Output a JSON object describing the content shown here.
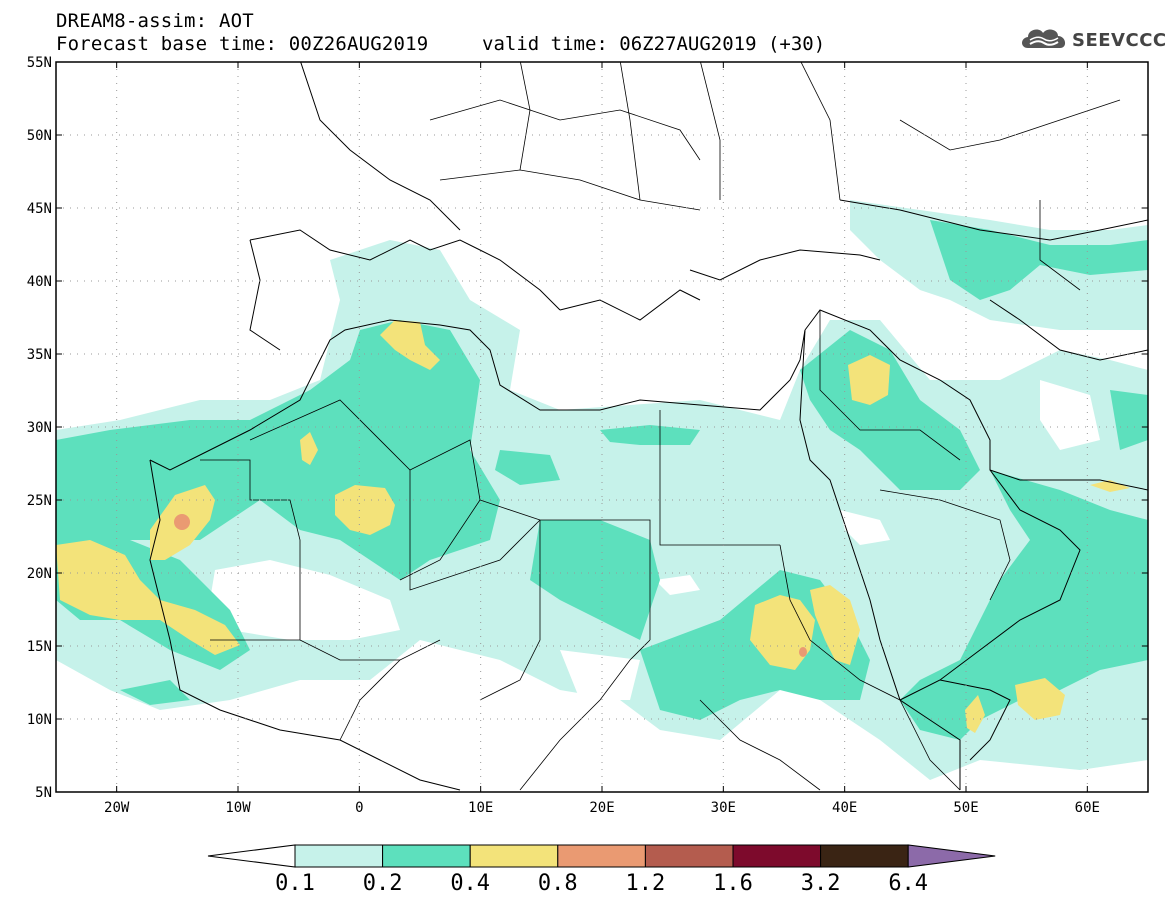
{
  "header": {
    "title": "DREAM8-assim: AOT",
    "forecast": "Forecast base time: 00Z26AUG2019",
    "valid": "valid time: 06Z27AUG2019 (+30)"
  },
  "logo": {
    "text": "SEEVCCC",
    "icon": "cloud-icon"
  },
  "map": {
    "lon_range": [
      -25,
      65
    ],
    "lat_range": [
      5,
      55
    ],
    "grid": true,
    "lat_labels": [
      "55N",
      "50N",
      "45N",
      "40N",
      "35N",
      "30N",
      "25N",
      "20N",
      "15N",
      "10N",
      "5N"
    ],
    "lat_values": [
      55,
      50,
      45,
      40,
      35,
      30,
      25,
      20,
      15,
      10,
      5
    ],
    "lon_labels": [
      "20W",
      "10W",
      "0",
      "10E",
      "20E",
      "30E",
      "40E",
      "50E",
      "60E"
    ],
    "lon_values": [
      -20,
      -10,
      0,
      10,
      20,
      30,
      40,
      50,
      60
    ]
  },
  "colorbar": {
    "labels": [
      "0.1",
      "0.2",
      "0.4",
      "0.8",
      "1.2",
      "1.6",
      "3.2",
      "6.4"
    ],
    "colors": [
      "#c6f2ea",
      "#5de0bd",
      "#f3e37a",
      "#ea9a72",
      "#b45c4e",
      "#7d0a2c",
      "#3a2414",
      "#8c6aa9"
    ],
    "under_color": "#ffffff"
  }
}
